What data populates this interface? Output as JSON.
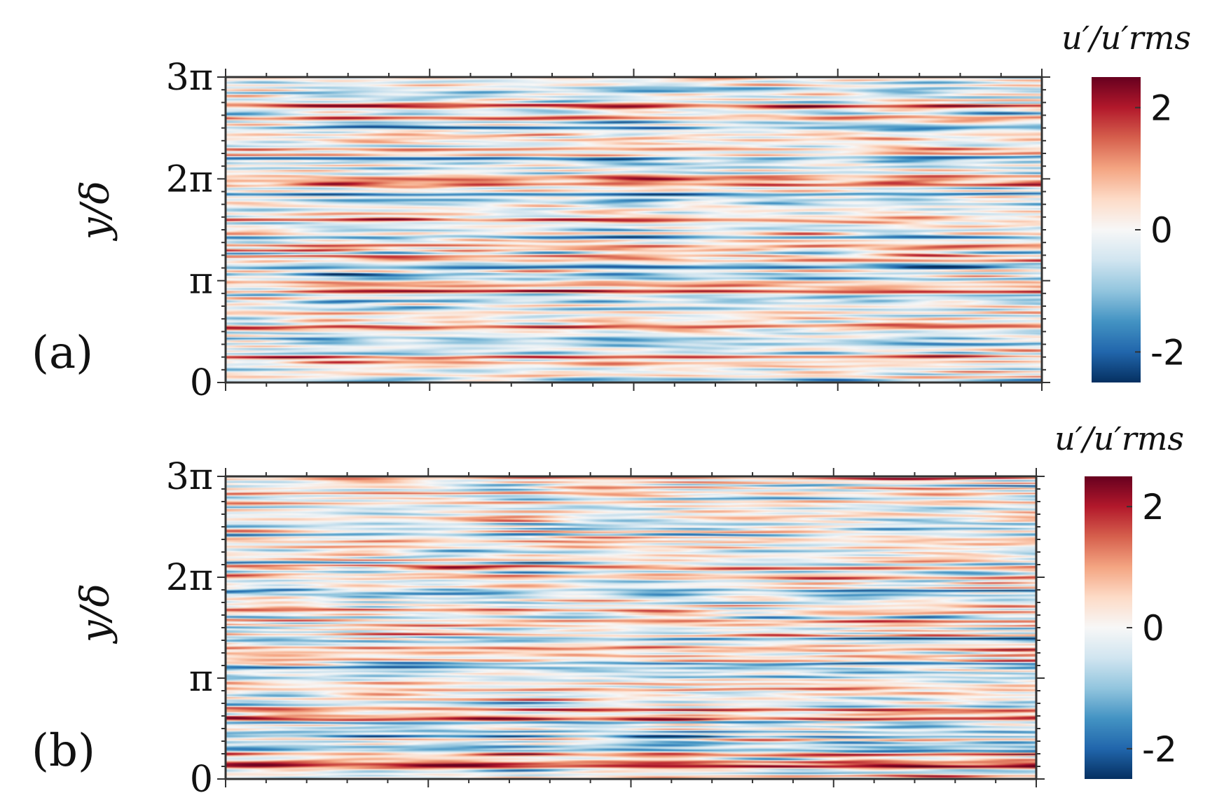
{
  "chart_data": [
    {
      "type": "heatmap",
      "panel_label": "(a)",
      "ylabel": "y/δ",
      "ylim": [
        0,
        3
      ],
      "yticks": [
        {
          "value": 0,
          "label": "0"
        },
        {
          "value": 1,
          "label": "π"
        },
        {
          "value": 2,
          "label": "2π"
        },
        {
          "value": 3,
          "label": "3π"
        }
      ],
      "colorbar": {
        "title": "u′/u′rms",
        "range": [
          -2.5,
          2.5
        ],
        "ticks": [
          {
            "value": 2,
            "label": "2"
          },
          {
            "value": 0,
            "label": "0"
          },
          {
            "value": -2,
            "label": "-2"
          }
        ],
        "colormap": [
          "#053061",
          "#2166ac",
          "#4393c3",
          "#92c5de",
          "#d1e5f0",
          "#f7f7f7",
          "#fddbc7",
          "#f4a582",
          "#d6604d",
          "#b2182b",
          "#67001f"
        ]
      },
      "field": "instantaneous streamwise velocity fluctuation, elongated streaks alternating positive (red) and negative (blue)",
      "seed": 17
    },
    {
      "type": "heatmap",
      "panel_label": "(b)",
      "ylabel": "y/δ",
      "ylim": [
        0,
        3
      ],
      "yticks": [
        {
          "value": 0,
          "label": "0"
        },
        {
          "value": 1,
          "label": "π"
        },
        {
          "value": 2,
          "label": "2π"
        },
        {
          "value": 3,
          "label": "3π"
        }
      ],
      "colorbar": {
        "title": "u′/u′rms",
        "range": [
          -2.5,
          2.5
        ],
        "ticks": [
          {
            "value": 2,
            "label": "2"
          },
          {
            "value": 0,
            "label": "0"
          },
          {
            "value": -2,
            "label": "-2"
          }
        ],
        "colormap": [
          "#053061",
          "#2166ac",
          "#4393c3",
          "#92c5de",
          "#d1e5f0",
          "#f7f7f7",
          "#fddbc7",
          "#f4a582",
          "#d6604d",
          "#b2182b",
          "#67001f"
        ]
      },
      "field": "instantaneous streamwise velocity fluctuation, longer and smoother streaks alternating positive (red) and negative (blue)",
      "seed": 53
    }
  ]
}
